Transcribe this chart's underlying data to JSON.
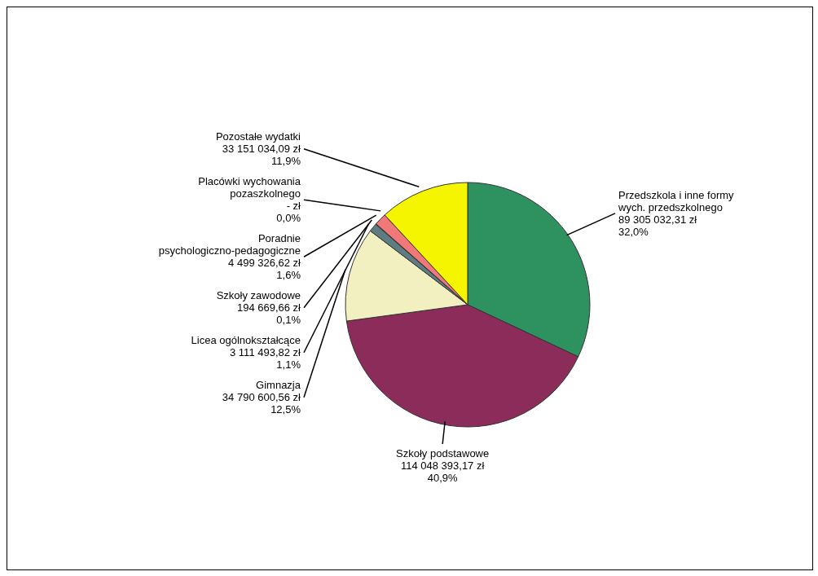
{
  "chart_data": {
    "type": "pie",
    "categories": [
      "Przedszkola i inne formy wych. przedszkolnego",
      "Szkoły podstawowe",
      "Gimnazja",
      "Licea ogólnokształcące",
      "Szkoły zawodowe",
      "Poradnie psychologiczno-pedagogiczne",
      "Placówki wychowania pozaszkolnego",
      "Pozostałe wydatki"
    ],
    "values": [
      89305032.31,
      114048393.17,
      34790600.56,
      3111493.82,
      194669.66,
      4499326.62,
      0,
      33151034.09
    ],
    "colors": [
      "#2e9160",
      "#8b2c5a",
      "#f2f0c0",
      "#5f7c82",
      "#c8f0f0",
      "#f07878",
      "#1f3a70",
      "#f5f500"
    ],
    "value_labels": [
      "89 305 032,31 zł\n32,0%",
      "114 048 393,17 zł\n40,9%",
      "34 790 600,56 zł\n12,5%",
      "3 111 493,82 zł\n1,1%",
      "194 669,66 zł\n0,1%",
      "4 499 326,62 zł\n1,6%",
      "-  zł\n0,0%",
      "33 151 034,09 zł\n11,9%"
    ]
  }
}
